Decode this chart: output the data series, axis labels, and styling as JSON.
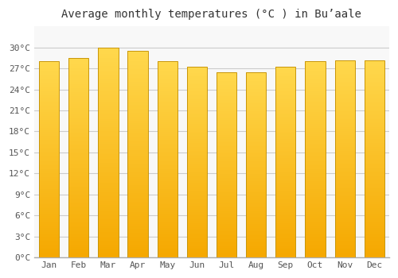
{
  "title": "Average monthly temperatures (°C ) in Buʼaale",
  "months": [
    "Jan",
    "Feb",
    "Mar",
    "Apr",
    "May",
    "Jun",
    "Jul",
    "Aug",
    "Sep",
    "Oct",
    "Nov",
    "Dec"
  ],
  "temperatures": [
    28.0,
    28.5,
    30.0,
    29.5,
    28.0,
    27.2,
    26.5,
    26.5,
    27.2,
    28.0,
    28.2,
    28.2
  ],
  "bar_color_bottom": "#F5A800",
  "bar_color_top": "#FFD84D",
  "bar_edge_color": "#C8960A",
  "ylim": [
    0,
    33
  ],
  "ytick_values": [
    0,
    3,
    6,
    9,
    12,
    15,
    18,
    21,
    24,
    27,
    30
  ],
  "background_color": "#FFFFFF",
  "plot_bg_color": "#F8F8F8",
  "grid_color": "#CCCCCC",
  "title_fontsize": 10,
  "tick_fontsize": 8,
  "font_family": "monospace"
}
